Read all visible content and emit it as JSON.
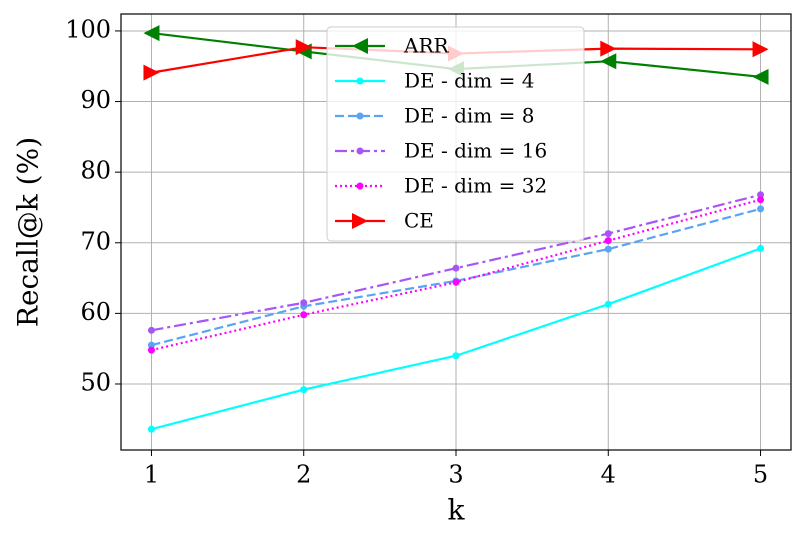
{
  "chart_data": {
    "type": "line",
    "x_label": "k",
    "y_label": "Recall@k (%)",
    "x": [
      1,
      2,
      3,
      4,
      5
    ],
    "xlim": [
      0.8,
      5.2
    ],
    "ylim": [
      40.65,
      102.4
    ],
    "xticks": [
      1,
      2,
      3,
      4,
      5
    ],
    "yticks": [
      50,
      60,
      70,
      80,
      90,
      100
    ],
    "grid": true,
    "legend": "upper center",
    "series": [
      {
        "name": "ARR",
        "color": "#008000",
        "linestyle": "solid",
        "marker": "triangle-left",
        "values": [
          99.7,
          97.1,
          94.6,
          95.7,
          93.5
        ]
      },
      {
        "name": "DE - dim = 4",
        "color": "#00ffff",
        "linestyle": "solid",
        "marker": "dot",
        "values": [
          43.6,
          49.2,
          54.0,
          61.3,
          69.2
        ]
      },
      {
        "name": "DE - dim = 8",
        "color": "#5aa4f5",
        "linestyle": "dashed",
        "marker": "dot",
        "values": [
          55.5,
          61.0,
          64.6,
          69.1,
          74.8
        ]
      },
      {
        "name": "DE - dim = 16",
        "color": "#a855f7",
        "linestyle": "dashdot",
        "marker": "dot",
        "values": [
          57.6,
          61.5,
          66.4,
          71.3,
          76.8
        ]
      },
      {
        "name": "DE - dim = 32",
        "color": "#ff00ff",
        "linestyle": "dotted",
        "marker": "dot",
        "values": [
          54.8,
          59.8,
          64.4,
          70.3,
          76.1
        ]
      },
      {
        "name": "CE",
        "color": "#ff0000",
        "linestyle": "solid",
        "marker": "triangle-right",
        "values": [
          94.1,
          97.7,
          96.8,
          97.5,
          97.4
        ]
      }
    ]
  }
}
